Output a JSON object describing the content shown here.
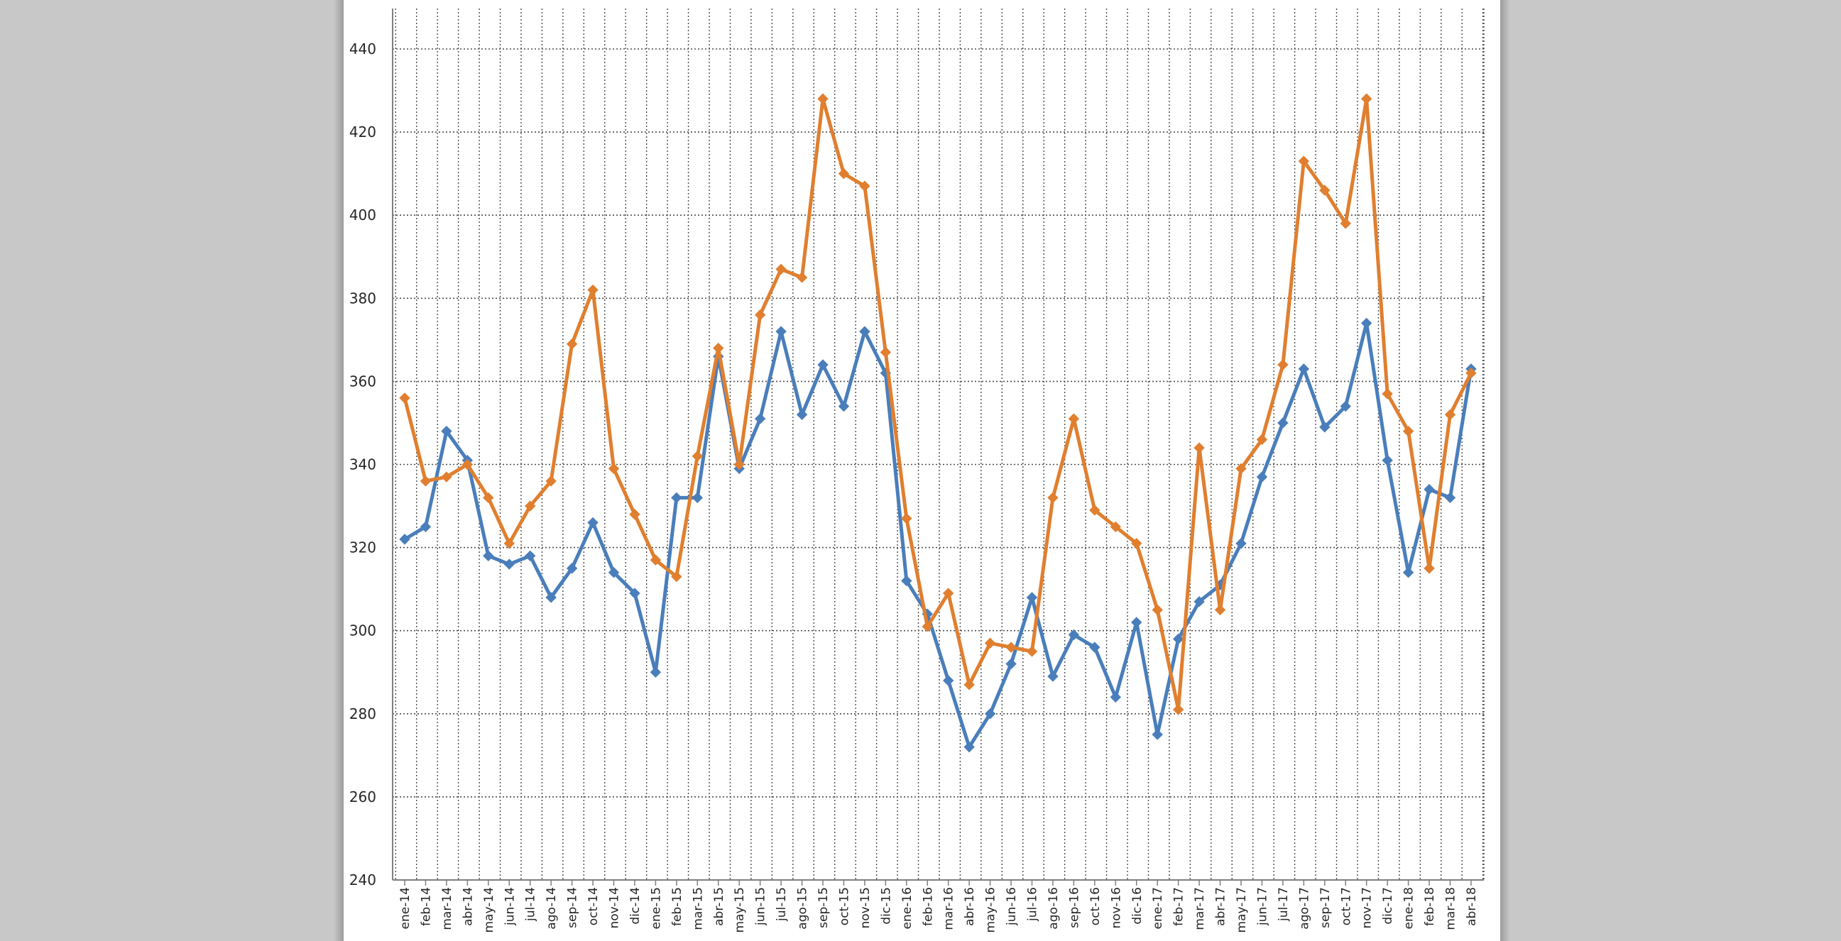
{
  "chart_data": {
    "type": "line",
    "title": "",
    "xlabel": "",
    "ylabel": "",
    "ylim": [
      240,
      450
    ],
    "yticks": [
      240,
      260,
      280,
      300,
      320,
      340,
      360,
      380,
      400,
      420,
      440
    ],
    "grid": true,
    "legend": "none",
    "categories": [
      "ene-14",
      "feb-14",
      "mar-14",
      "abr-14",
      "may-14",
      "jun-14",
      "jul-14",
      "ago-14",
      "sep-14",
      "oct-14",
      "nov-14",
      "dic-14",
      "ene-15",
      "feb-15",
      "mar-15",
      "abr-15",
      "may-15",
      "jun-15",
      "jul-15",
      "ago-15",
      "sep-15",
      "oct-15",
      "nov-15",
      "dic-15",
      "ene-16",
      "feb-16",
      "mar-16",
      "abr-16",
      "may-16",
      "jun-16",
      "jul-16",
      "ago-16",
      "sep-16",
      "oct-16",
      "nov-16",
      "dic-16",
      "ene-17",
      "feb-17",
      "mar-17",
      "abr-17",
      "may-17",
      "jun-17",
      "jul-17",
      "ago-17",
      "sep-17",
      "oct-17",
      "nov-17",
      "dic-17",
      "ene-18",
      "feb-18",
      "mar-18",
      "abr-18"
    ],
    "series": [
      {
        "color": "#4a7ebb",
        "values": [
          322,
          325,
          348,
          341,
          318,
          316,
          318,
          308,
          315,
          326,
          314,
          309,
          290,
          332,
          332,
          366,
          339,
          351,
          372,
          352,
          364,
          354,
          372,
          362,
          312,
          304,
          288,
          272,
          280,
          292,
          308,
          289,
          299,
          296,
          284,
          302,
          275,
          298,
          307,
          311,
          321,
          337,
          350,
          363,
          349,
          354,
          374,
          341,
          314,
          334,
          332,
          363
        ]
      },
      {
        "color": "#e07f2f",
        "values": [
          356,
          336,
          337,
          340,
          332,
          321,
          330,
          336,
          369,
          382,
          339,
          328,
          317,
          313,
          342,
          368,
          340,
          376,
          387,
          385,
          428,
          410,
          407,
          367,
          327,
          301,
          309,
          287,
          297,
          296,
          295,
          332,
          351,
          329,
          325,
          321,
          305,
          281,
          344,
          305,
          339,
          346,
          364,
          413,
          406,
          398,
          428,
          357,
          348,
          315,
          352,
          362
        ]
      }
    ]
  }
}
